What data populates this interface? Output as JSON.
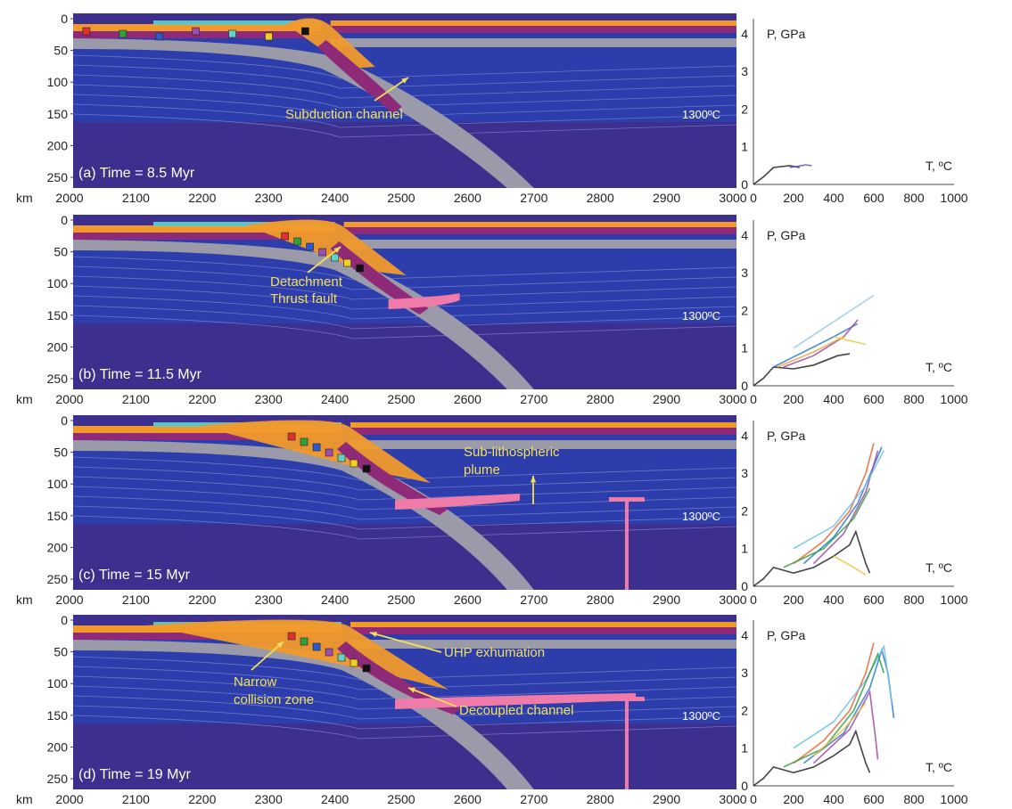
{
  "figure": {
    "x_unit": "km",
    "depth_ticks": [
      "0",
      "50",
      "100",
      "150",
      "200",
      "250"
    ],
    "x_ticks": [
      "2000",
      "2100",
      "2200",
      "2300",
      "2400",
      "2500",
      "2600",
      "2700",
      "2800",
      "2900",
      "3000"
    ],
    "pt_p_ticks": [
      "0",
      "1",
      "2",
      "3",
      "4"
    ],
    "pt_t_ticks": [
      "0",
      "200",
      "400",
      "600",
      "800",
      "1000"
    ],
    "pt_p_label": "P, GPa",
    "pt_t_label": "T, ºC",
    "isotherm_label": "1300ºC",
    "colors": {
      "mantle": "#3c2f8e",
      "mantle_band": "#2a3fb0",
      "lithosphere_grey": "#9a9aa8",
      "crust_orange": "#f19a2b",
      "crust_magenta": "#8e2a78",
      "sediment_cyan": "#5fd3c9",
      "plume_pink": "#f07aa8",
      "annotation_yellow": "#f2e05a"
    }
  },
  "panels": [
    {
      "title": "(a) Time = 8.5 Myr",
      "annotations": [
        "Subduction channel"
      ]
    },
    {
      "title": "(b) Time = 11.5 Myr",
      "annotations": [
        "Detachment",
        "Thrust fault"
      ]
    },
    {
      "title": "(c) Time = 15 Myr",
      "annotations": [
        "Sub-lithospheric",
        "plume"
      ]
    },
    {
      "title": "(d) Time = 19 Myr",
      "annotations": [
        "Narrow",
        "collision zone",
        "UHP exhumation",
        "Decoupled channel"
      ]
    }
  ],
  "chart_data": [
    {
      "type": "line",
      "panel": "a",
      "xlabel": "T, ºC",
      "ylabel": "P, GPa",
      "xlim": [
        0,
        1000
      ],
      "ylim": [
        0,
        4.4
      ],
      "series": [
        {
          "color": "#222222",
          "x": [
            0,
            50,
            100,
            180,
            230
          ],
          "y": [
            0,
            0.2,
            0.45,
            0.5,
            0.45
          ]
        },
        {
          "color": "#6a52c8",
          "x": [
            180,
            220,
            260,
            290
          ],
          "y": [
            0.45,
            0.48,
            0.52,
            0.5
          ]
        }
      ]
    },
    {
      "type": "line",
      "panel": "b",
      "xlabel": "T, ºC",
      "ylabel": "P, GPa",
      "xlim": [
        0,
        1000
      ],
      "ylim": [
        0,
        4.4
      ],
      "series": [
        {
          "color": "#222222",
          "x": [
            0,
            50,
            100,
            200,
            300,
            420,
            480
          ],
          "y": [
            0,
            0.2,
            0.5,
            0.45,
            0.55,
            0.8,
            0.85
          ]
        },
        {
          "color": "#2a7ad0",
          "x": [
            100,
            250,
            400,
            520
          ],
          "y": [
            0.5,
            0.9,
            1.3,
            1.65
          ]
        },
        {
          "color": "#a044a8",
          "x": [
            150,
            300,
            450,
            520
          ],
          "y": [
            0.5,
            0.8,
            1.3,
            1.75
          ]
        },
        {
          "color": "#f0a030",
          "x": [
            120,
            300,
            450
          ],
          "y": [
            0.5,
            0.9,
            1.3
          ]
        },
        {
          "color": "#e0d040",
          "x": [
            400,
            480,
            560
          ],
          "y": [
            1.3,
            1.2,
            1.1
          ]
        },
        {
          "color": "#9ac8e8",
          "x": [
            200,
            400,
            600
          ],
          "y": [
            1.0,
            1.7,
            2.4
          ]
        }
      ]
    },
    {
      "type": "line",
      "panel": "c",
      "xlabel": "T, ºC",
      "ylabel": "P, GPa",
      "xlim": [
        0,
        1000
      ],
      "ylim": [
        0,
        4.4
      ],
      "series": [
        {
          "color": "#222222",
          "x": [
            0,
            50,
            100,
            200,
            300,
            400,
            480,
            510,
            560,
            580
          ],
          "y": [
            0,
            0.2,
            0.5,
            0.35,
            0.5,
            0.8,
            1.1,
            1.45,
            0.6,
            0.35
          ]
        },
        {
          "color": "#f06030",
          "x": [
            200,
            350,
            480,
            560,
            600
          ],
          "y": [
            0.6,
            1.2,
            2.0,
            3.0,
            3.8
          ]
        },
        {
          "color": "#2a7ad0",
          "x": [
            250,
            400,
            520,
            600,
            640
          ],
          "y": [
            0.6,
            1.3,
            2.2,
            3.2,
            3.7
          ]
        },
        {
          "color": "#a044a8",
          "x": [
            300,
            450,
            560,
            620
          ],
          "y": [
            0.6,
            1.4,
            2.5,
            3.6
          ]
        },
        {
          "color": "#6cc0e8",
          "x": [
            200,
            400,
            550,
            650
          ],
          "y": [
            1.0,
            1.6,
            2.6,
            3.6
          ]
        },
        {
          "color": "#30a040",
          "x": [
            150,
            350,
            500,
            580
          ],
          "y": [
            0.5,
            1.0,
            1.8,
            2.6
          ]
        },
        {
          "color": "#f0c040",
          "x": [
            400,
            500,
            560
          ],
          "y": [
            0.8,
            0.5,
            0.3
          ]
        }
      ]
    },
    {
      "type": "line",
      "panel": "d",
      "xlabel": "T, ºC",
      "ylabel": "P, GPa",
      "xlim": [
        0,
        1000
      ],
      "ylim": [
        0,
        4.4
      ],
      "series": [
        {
          "color": "#222222",
          "x": [
            0,
            50,
            100,
            200,
            300,
            400,
            480,
            510,
            560,
            580
          ],
          "y": [
            0,
            0.2,
            0.5,
            0.35,
            0.5,
            0.8,
            1.1,
            1.45,
            0.6,
            0.35
          ]
        },
        {
          "color": "#f06030",
          "x": [
            200,
            350,
            480,
            560,
            600
          ],
          "y": [
            0.6,
            1.2,
            2.0,
            3.0,
            3.8
          ]
        },
        {
          "color": "#2a7ad0",
          "x": [
            250,
            450,
            580,
            640,
            670,
            700
          ],
          "y": [
            0.6,
            1.4,
            2.6,
            3.6,
            3.0,
            1.8
          ]
        },
        {
          "color": "#a044a8",
          "x": [
            300,
            480,
            580,
            610,
            620
          ],
          "y": [
            0.6,
            1.5,
            2.5,
            1.2,
            0.7
          ]
        },
        {
          "color": "#6cc0e8",
          "x": [
            200,
            400,
            560,
            650,
            690
          ],
          "y": [
            1.0,
            1.7,
            2.8,
            3.7,
            2.2
          ]
        },
        {
          "color": "#30a040",
          "x": [
            150,
            350,
            500,
            620,
            650
          ],
          "y": [
            0.5,
            1.0,
            2.0,
            3.5,
            3.0
          ]
        },
        {
          "color": "#f0c040",
          "x": [
            300,
            450,
            560
          ],
          "y": [
            0.8,
            1.5,
            2.2
          ]
        }
      ]
    }
  ]
}
